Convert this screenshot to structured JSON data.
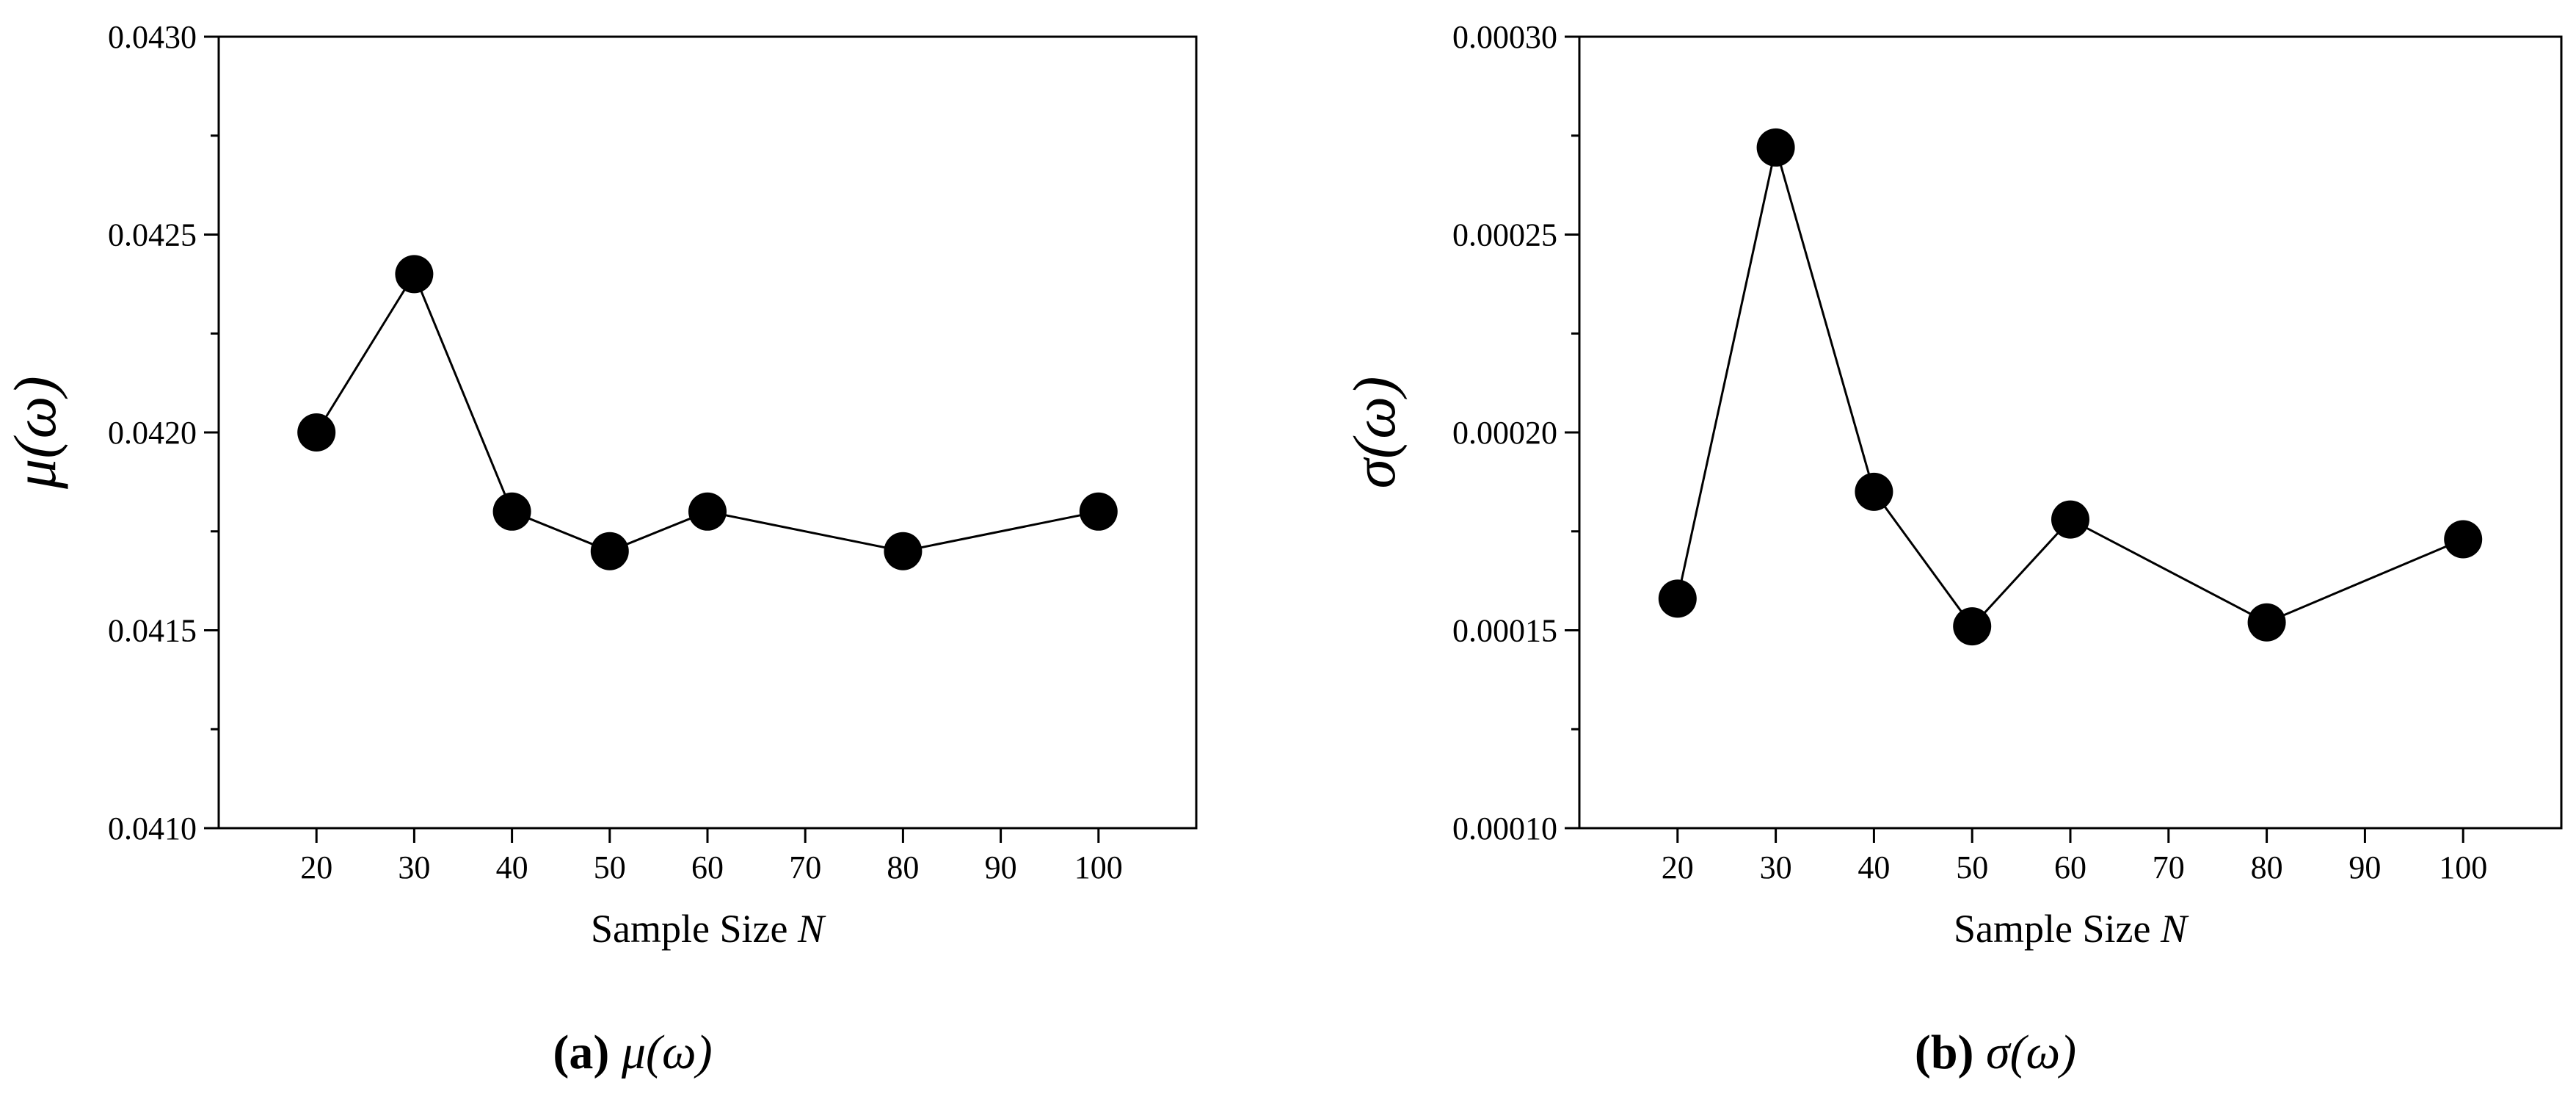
{
  "chart_data": [
    {
      "type": "line",
      "xlabel": "Sample Size",
      "xlabel_var": "N",
      "ylabel": "μ(ω)",
      "ylim": [
        0.041,
        0.043
      ],
      "yticks": [
        "0.0410",
        "0.0415",
        "0.0420",
        "0.0425",
        "0.0430"
      ],
      "xticks": [
        "20",
        "30",
        "40",
        "50",
        "60",
        "70",
        "80",
        "90",
        "100"
      ],
      "xlim": [
        10,
        110
      ],
      "x": [
        20,
        30,
        40,
        50,
        60,
        80,
        100
      ],
      "y": [
        0.042,
        0.0424,
        0.0418,
        0.0417,
        0.0418,
        0.0417,
        0.0418
      ],
      "marker": "filled-circle",
      "color": "#000000",
      "caption_tag": "(a)",
      "caption_text": "μ(ω)"
    },
    {
      "type": "line",
      "xlabel": "Sample Size",
      "xlabel_var": "N",
      "ylabel": "σ(ω)",
      "ylim": [
        0.0001,
        0.0003
      ],
      "yticks": [
        "0.00010",
        "0.00015",
        "0.00020",
        "0.00025",
        "0.00030"
      ],
      "xticks": [
        "20",
        "30",
        "40",
        "50",
        "60",
        "70",
        "80",
        "90",
        "100"
      ],
      "xlim": [
        10,
        110
      ],
      "x": [
        20,
        30,
        40,
        50,
        60,
        80,
        100
      ],
      "y": [
        0.000158,
        0.000272,
        0.000185,
        0.000151,
        0.000178,
        0.000152,
        0.000173
      ],
      "marker": "filled-circle",
      "color": "#000000",
      "caption_tag": "(b)",
      "caption_text": "σ(ω)"
    }
  ]
}
